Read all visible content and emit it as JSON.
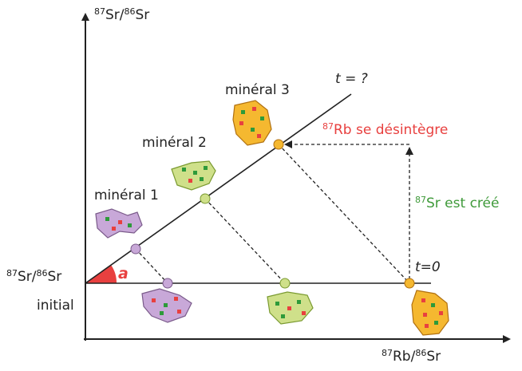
{
  "axes": {
    "y_label": {
      "mass1": "87",
      "el1": "Sr/",
      "mass2": "86",
      "el2": "Sr"
    },
    "x_label": {
      "mass1": "87",
      "el1": "Rb/",
      "mass2": "86",
      "el2": "Sr"
    }
  },
  "initial_label": {
    "mass1": "87",
    "el1": "Sr/",
    "mass2": "86",
    "el2": "Sr",
    "line2": "initial"
  },
  "angle_label": "a",
  "isochrons": {
    "current": "t = ?",
    "initial": "t=0"
  },
  "minerals": [
    "minéral 1",
    "minéral 2",
    "minéral 3"
  ],
  "annotations": {
    "decay": {
      "mass": "87",
      "text": "Rb se désintègre"
    },
    "creation": {
      "mass": "87",
      "text": "Sr est créé"
    }
  }
}
